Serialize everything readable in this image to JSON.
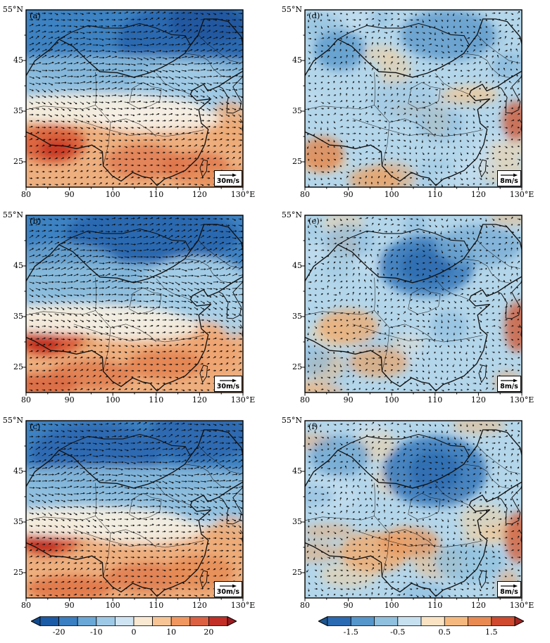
{
  "panels": [
    {
      "id": "(a)",
      "key": "a",
      "type": "left",
      "ref_label": "30m/s"
    },
    {
      "id": "(b)",
      "key": "b",
      "type": "left",
      "ref_label": "30m/s"
    },
    {
      "id": "(c)",
      "key": "c",
      "type": "left",
      "ref_label": "30m/s"
    },
    {
      "id": "(d)",
      "key": "d",
      "type": "right",
      "ref_label": "8m/s"
    },
    {
      "id": "(e)",
      "key": "e",
      "type": "right",
      "ref_label": "8m/s"
    },
    {
      "id": "(f)",
      "key": "f",
      "type": "right",
      "ref_label": "8m/s"
    }
  ],
  "axes": {
    "y_ticks": [
      "55°N",
      "45",
      "35",
      "25"
    ],
    "x_ticks": [
      "80",
      "90",
      "100",
      "110",
      "120",
      "130°E"
    ],
    "lat_tick_values": [
      55,
      45,
      35,
      25
    ],
    "lon_tick_values": [
      80,
      90,
      100,
      110,
      120,
      130
    ]
  },
  "colorbars": {
    "left": {
      "ticks": [
        "-20",
        "-10",
        "0",
        "10",
        "20"
      ],
      "tick_values": [
        -20,
        -10,
        0,
        10,
        20
      ],
      "domain": [
        -25,
        25
      ],
      "colors": [
        "#1c5ba6",
        "#3a7fc1",
        "#6aa8d8",
        "#9dc9e6",
        "#cfe4f2",
        "#f9e8d2",
        "#f7c495",
        "#f0975f",
        "#dc6142",
        "#c22f27"
      ],
      "end_low": "#124a8e",
      "end_high": "#9c1c20"
    },
    "right": {
      "ticks": [
        "-1.5",
        "-0.5",
        "0.5",
        "1.5"
      ],
      "tick_values": [
        -1.5,
        -0.5,
        0.5,
        1.5
      ],
      "domain": [
        -2,
        2
      ],
      "colors": [
        "#2a6ab2",
        "#5596cb",
        "#8fc0de",
        "#c6e0f0",
        "#f9e3c3",
        "#f5b97f",
        "#e88a52",
        "#cf4a2e"
      ],
      "end_low": "#1c558f",
      "end_high": "#a32421"
    }
  },
  "palette": {
    "map_line": "#111111",
    "frame": "#000000",
    "vector": "#0d0d0d",
    "left_base": "#c2dcee",
    "right_base": "#b4d6ea"
  },
  "chart_data": {
    "type": "heatmap",
    "title": "",
    "description": "Six-panel meteorological figure over the China / East Asia domain: wind-vector fields overlaid on shaded anomaly maps with country borders and coastlines. Left column (a,b,c) uses a -20..20 shading scale and a 30 m/s reference vector; right column (d,e,f) uses a -1.5..1.5 shading scale and an 8 m/s reference vector.",
    "x_axis": {
      "label": "longitude (°E)",
      "range": [
        80,
        130
      ],
      "ticks": [
        80,
        90,
        100,
        110,
        120,
        130
      ]
    },
    "y_axis": {
      "label": "latitude (°N)",
      "range": [
        20,
        55
      ],
      "ticks": [
        25,
        35,
        45,
        55
      ]
    },
    "panels": [
      {
        "label": "(a)",
        "column": "left",
        "reference_vector": "30m/s",
        "vectors": "dense, predominantly westerly (eastward) arrows, strongest 40–55°N",
        "shading": "strong negative (blue) anomalies north of ~37°N with maximum over Mongolia and Northeast China; near-zero (white) band along ~33–36°N; positive (orange–red) anomalies over the western Tibetan Plateau (~82–95°E, 25–33°N) and across southern China"
      },
      {
        "label": "(b)",
        "column": "left",
        "reference_vector": "30m/s",
        "vectors": "dense westerly arrows, strongest in northern half",
        "shading": "negative (blue) anomalies north of ~37°N; strong positive (red) center near 82–90°E, 28–33°N over the Himalayas/plateau; orange positive band across southern China south of ~30°N"
      },
      {
        "label": "(c)",
        "column": "left",
        "reference_vector": "30m/s",
        "vectors": "dense westerly arrows, strongest in northern half",
        "shading": "negative (blue) anomalies across the north with deep center near 90–100°E and 115–125°E, 46–55°N; white near-zero band ~33–36°N; strong positive (red) center near 82–88°E, 29–33°N and orange anomalies over southern China"
      },
      {
        "label": "(d)",
        "column": "right",
        "reference_vector": "8m/s",
        "vectors": "short weak arrows of variable direction",
        "shading": "mottled weak anomalies: light-blue negative over most of the domain with scattered pale-orange positive patches; small warm patches near 82–86°E, 24–29°N and along the east coast"
      },
      {
        "label": "(e)",
        "column": "right",
        "reference_vector": "8m/s",
        "vectors": "short weak arrows of variable direction",
        "shading": "negative (blue) center near 103–115°E, 40–48°N over North China–Mongolia; weak positive (orange) patches over the eastern plateau (~85–95°E, 30–35°N) and near the east coast ~129°E, 31–35°N"
      },
      {
        "label": "(f)",
        "column": "right",
        "reference_vector": "8m/s",
        "vectors": "short weak arrows of variable direction",
        "shading": "strongest negative (blue) center near 104–117°E, 40–50°N; positive (orange) anomalies over southwest China ~92–108°E, 26–33°N; small red patch near the coast ~129°E, 30–34°N"
      }
    ],
    "colorbar_left": {
      "ticks": [
        -20,
        -10,
        0,
        10,
        20
      ],
      "applies_to": [
        "(a)",
        "(b)",
        "(c)"
      ],
      "style": "diverging blue-white-red, pointed ends"
    },
    "colorbar_right": {
      "ticks": [
        -1.5,
        -0.5,
        0.5,
        1.5
      ],
      "applies_to": [
        "(d)",
        "(e)",
        "(f)"
      ],
      "style": "diverging blue-white-red, pointed ends"
    }
  }
}
